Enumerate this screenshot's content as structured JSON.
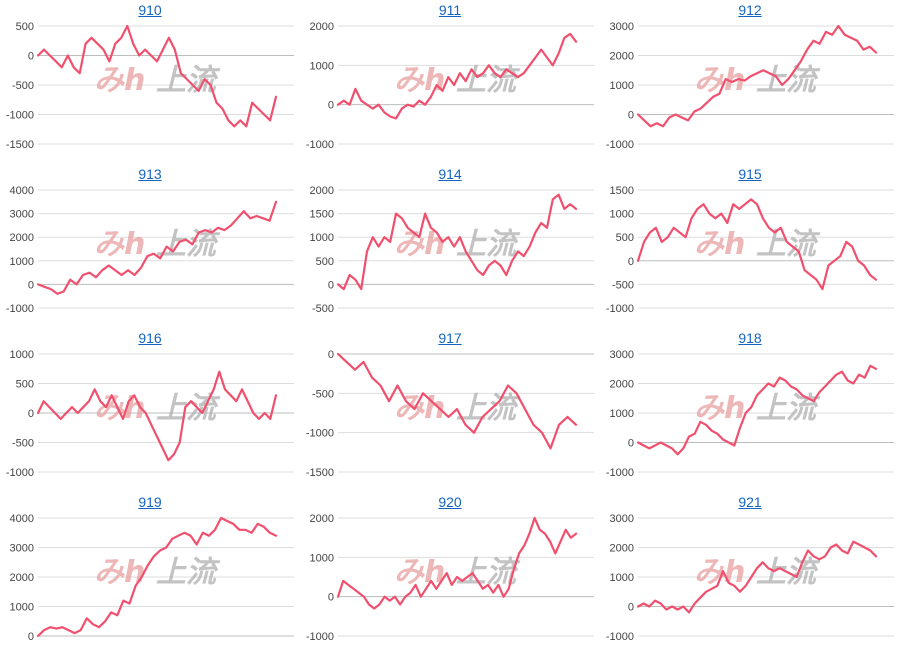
{
  "chart_data": [
    {
      "type": "line",
      "title": "910",
      "ylim": [
        -1500,
        500
      ],
      "yticks": [
        500,
        0,
        -500,
        -1000,
        -1500
      ],
      "color": "#f0506e",
      "values": [
        0,
        100,
        0,
        -100,
        -200,
        0,
        -200,
        -300,
        200,
        300,
        200,
        100,
        -100,
        200,
        300,
        500,
        200,
        0,
        100,
        0,
        -100,
        100,
        300,
        100,
        -300,
        -400,
        -500,
        -600,
        -400,
        -500,
        -800,
        -900,
        -1100,
        -1200,
        -1100,
        -1200,
        -800,
        -900,
        -1000,
        -1100,
        -700
      ]
    },
    {
      "type": "line",
      "title": "911",
      "ylim": [
        -1000,
        2000
      ],
      "yticks": [
        2000,
        1000,
        0,
        -1000
      ],
      "color": "#f0506e",
      "values": [
        0,
        100,
        0,
        400,
        100,
        0,
        -100,
        0,
        -200,
        -300,
        -350,
        -100,
        0,
        -50,
        100,
        0,
        200,
        500,
        350,
        700,
        500,
        800,
        600,
        900,
        700,
        800,
        1000,
        800,
        700,
        900,
        800,
        700,
        800,
        1000,
        1200,
        1400,
        1200,
        1000,
        1300,
        1700,
        1800,
        1600
      ]
    },
    {
      "type": "line",
      "title": "912",
      "ylim": [
        -1000,
        3000
      ],
      "yticks": [
        3000,
        2000,
        1000,
        0,
        -1000
      ],
      "color": "#f0506e",
      "values": [
        0,
        -200,
        -400,
        -300,
        -400,
        -100,
        0,
        -100,
        -200,
        100,
        200,
        400,
        600,
        700,
        1200,
        1100,
        1200,
        1150,
        1300,
        1400,
        1500,
        1400,
        1300,
        1000,
        1200,
        1500,
        1800,
        2200,
        2500,
        2400,
        2800,
        2700,
        3000,
        2700,
        2600,
        2500,
        2200,
        2300,
        2100
      ]
    },
    {
      "type": "line",
      "title": "913",
      "ylim": [
        -1000,
        4000
      ],
      "yticks": [
        4000,
        3000,
        2000,
        1000,
        0,
        -1000
      ],
      "color": "#f0506e",
      "values": [
        0,
        -100,
        -200,
        -400,
        -300,
        200,
        0,
        400,
        500,
        300,
        600,
        800,
        600,
        400,
        600,
        400,
        700,
        1200,
        1300,
        1100,
        1600,
        1400,
        1800,
        1900,
        1700,
        2200,
        2300,
        2200,
        2400,
        2300,
        2500,
        2800,
        3100,
        2800,
        2900,
        2800,
        2700,
        3500
      ]
    },
    {
      "type": "line",
      "title": "914",
      "ylim": [
        -500,
        2000
      ],
      "yticks": [
        2000,
        1500,
        1000,
        500,
        0,
        -500
      ],
      "color": "#f0506e",
      "values": [
        0,
        -100,
        200,
        100,
        -100,
        700,
        1000,
        800,
        1000,
        900,
        1500,
        1400,
        1200,
        1100,
        1000,
        1500,
        1200,
        1100,
        900,
        1000,
        800,
        1000,
        700,
        500,
        300,
        200,
        400,
        500,
        400,
        200,
        500,
        700,
        600,
        800,
        1100,
        1300,
        1200,
        1800,
        1900,
        1600,
        1700,
        1600
      ]
    },
    {
      "type": "line",
      "title": "915",
      "ylim": [
        -1000,
        1500
      ],
      "yticks": [
        1500,
        1000,
        500,
        0,
        -500,
        -1000
      ],
      "color": "#f0506e",
      "values": [
        0,
        400,
        600,
        700,
        400,
        500,
        700,
        600,
        500,
        900,
        1100,
        1200,
        1000,
        900,
        1000,
        800,
        1200,
        1100,
        1200,
        1300,
        1200,
        900,
        700,
        600,
        700,
        400,
        300,
        200,
        -200,
        -300,
        -400,
        -600,
        -100,
        0,
        100,
        400,
        300,
        0,
        -100,
        -300,
        -400
      ]
    },
    {
      "type": "line",
      "title": "916",
      "ylim": [
        -1000,
        1000
      ],
      "yticks": [
        1000,
        500,
        0,
        -500,
        -1000
      ],
      "color": "#f0506e",
      "values": [
        0,
        200,
        100,
        0,
        -100,
        0,
        100,
        0,
        100,
        200,
        400,
        200,
        100,
        300,
        100,
        -100,
        200,
        300,
        100,
        0,
        -200,
        -400,
        -600,
        -800,
        -700,
        -500,
        100,
        200,
        100,
        0,
        200,
        400,
        700,
        400,
        300,
        200,
        400,
        200,
        0,
        -100,
        0,
        -100,
        300
      ]
    },
    {
      "type": "line",
      "title": "917",
      "ylim": [
        -1500,
        0
      ],
      "yticks": [
        0,
        -500,
        -1000,
        -1500
      ],
      "color": "#f0506e",
      "values": [
        0,
        -100,
        -200,
        -100,
        -300,
        -400,
        -600,
        -400,
        -600,
        -700,
        -500,
        -600,
        -700,
        -800,
        -700,
        -900,
        -1000,
        -800,
        -700,
        -600,
        -400,
        -500,
        -700,
        -900,
        -1000,
        -1200,
        -900,
        -800,
        -900
      ]
    },
    {
      "type": "line",
      "title": "918",
      "ylim": [
        -1000,
        3000
      ],
      "yticks": [
        3000,
        2000,
        1000,
        0,
        -1000
      ],
      "color": "#f0506e",
      "values": [
        0,
        -100,
        -200,
        -100,
        0,
        -100,
        -200,
        -400,
        -200,
        200,
        300,
        700,
        600,
        400,
        300,
        100,
        0,
        -100,
        500,
        1000,
        1200,
        1600,
        1800,
        2000,
        1900,
        2200,
        2100,
        1900,
        1800,
        1600,
        1500,
        1400,
        1700,
        1900,
        2100,
        2300,
        2400,
        2100,
        2000,
        2300,
        2200,
        2600,
        2500
      ]
    },
    {
      "type": "line",
      "title": "919",
      "ylim": [
        0,
        4000
      ],
      "yticks": [
        4000,
        3000,
        2000,
        1000,
        0
      ],
      "color": "#f0506e",
      "values": [
        0,
        200,
        300,
        250,
        300,
        200,
        100,
        200,
        600,
        400,
        300,
        500,
        800,
        700,
        1200,
        1100,
        1700,
        2000,
        2400,
        2700,
        2900,
        3000,
        3300,
        3400,
        3500,
        3400,
        3100,
        3500,
        3400,
        3600,
        4000,
        3900,
        3800,
        3600,
        3600,
        3500,
        3800,
        3700,
        3500,
        3400
      ]
    },
    {
      "type": "line",
      "title": "920",
      "ylim": [
        -1000,
        2000
      ],
      "yticks": [
        2000,
        1000,
        0,
        -1000
      ],
      "color": "#f0506e",
      "values": [
        0,
        400,
        300,
        200,
        100,
        0,
        -200,
        -300,
        -200,
        0,
        -100,
        0,
        -200,
        0,
        100,
        300,
        0,
        200,
        400,
        200,
        400,
        600,
        300,
        500,
        400,
        500,
        600,
        400,
        200,
        300,
        100,
        300,
        0,
        200,
        700,
        1100,
        1300,
        1600,
        2000,
        1700,
        1600,
        1400,
        1100,
        1400,
        1700,
        1500,
        1600
      ]
    },
    {
      "type": "line",
      "title": "921",
      "ylim": [
        -1000,
        3000
      ],
      "yticks": [
        3000,
        2000,
        1000,
        0,
        -1000
      ],
      "color": "#f0506e",
      "values": [
        0,
        100,
        0,
        200,
        100,
        -100,
        0,
        -100,
        0,
        -200,
        100,
        300,
        500,
        600,
        700,
        1200,
        800,
        700,
        500,
        700,
        1000,
        1300,
        1500,
        1300,
        1200,
        1300,
        1200,
        1100,
        1000,
        1500,
        1900,
        1700,
        1600,
        1700,
        2000,
        2100,
        1900,
        1800,
        2200,
        2100,
        2000,
        1900,
        1700
      ]
    }
  ]
}
